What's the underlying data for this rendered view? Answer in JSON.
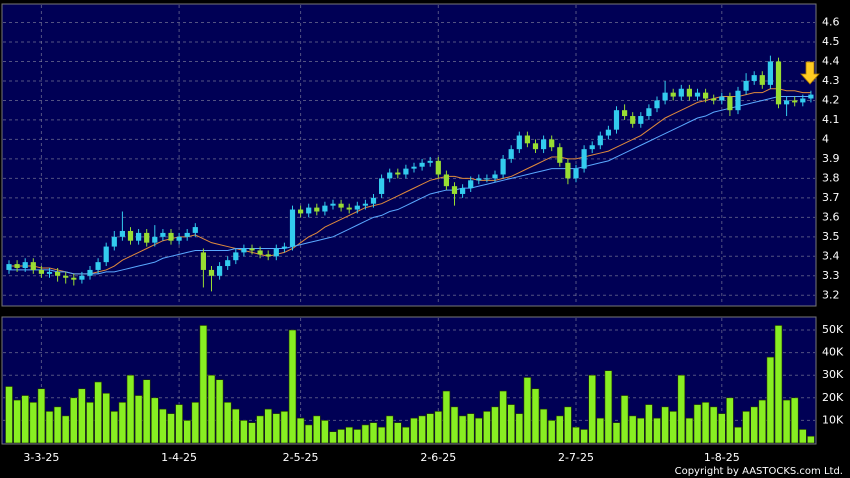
{
  "chart_data": [
    {
      "type": "candlestick",
      "up_color": "#33ccee",
      "down_color": "#99dd33",
      "grid": true,
      "ylim": [
        3.15,
        4.69
      ],
      "yticks": [
        3.2,
        3.3,
        3.4,
        3.5,
        3.6,
        3.7,
        3.8,
        3.9,
        4,
        4.1,
        4.2,
        4.3,
        4.4,
        4.5,
        4.6
      ],
      "open": [
        3.33,
        3.36,
        3.34,
        3.37,
        3.33,
        3.31,
        3.32,
        3.3,
        3.29,
        3.28,
        3.3,
        3.33,
        3.37,
        3.45,
        3.5,
        3.53,
        3.48,
        3.52,
        3.47,
        3.5,
        3.52,
        3.48,
        3.5,
        3.52,
        3.42,
        3.33,
        3.3,
        3.35,
        3.38,
        3.42,
        3.44,
        3.43,
        3.41,
        3.4,
        3.44,
        3.45,
        3.64,
        3.62,
        3.65,
        3.63,
        3.66,
        3.67,
        3.65,
        3.64,
        3.66,
        3.67,
        3.72,
        3.8,
        3.83,
        3.82,
        3.85,
        3.86,
        3.88,
        3.89,
        3.82,
        3.76,
        3.72,
        3.75,
        3.79,
        3.8,
        3.8,
        3.82,
        3.9,
        3.95,
        4.02,
        3.98,
        3.95,
        4.0,
        3.96,
        3.88,
        3.8,
        3.85,
        3.95,
        3.97,
        4.02,
        4.05,
        4.15,
        4.12,
        4.08,
        4.12,
        4.16,
        4.2,
        4.24,
        4.22,
        4.26,
        4.22,
        4.24,
        4.21,
        4.2,
        4.22,
        4.15,
        4.25,
        4.3,
        4.33,
        4.28,
        4.4,
        4.18,
        4.2,
        4.19,
        4.21
      ],
      "high": [
        3.38,
        3.38,
        3.39,
        3.39,
        3.35,
        3.34,
        3.34,
        3.32,
        3.31,
        3.32,
        3.35,
        3.39,
        3.47,
        3.53,
        3.63,
        3.55,
        3.54,
        3.54,
        3.56,
        3.54,
        3.54,
        3.52,
        3.54,
        3.57,
        3.44,
        3.35,
        3.37,
        3.4,
        3.44,
        3.46,
        3.46,
        3.45,
        3.43,
        3.46,
        3.47,
        3.66,
        3.66,
        3.67,
        3.67,
        3.68,
        3.69,
        3.69,
        3.67,
        3.68,
        3.69,
        3.72,
        3.82,
        3.85,
        3.85,
        3.87,
        3.88,
        3.9,
        3.91,
        3.91,
        3.84,
        3.78,
        3.77,
        3.81,
        3.82,
        3.82,
        3.84,
        3.92,
        3.97,
        4.04,
        4.04,
        4.0,
        4.02,
        4.02,
        3.98,
        3.9,
        3.87,
        3.97,
        3.99,
        4.04,
        4.07,
        4.17,
        4.18,
        4.14,
        4.14,
        4.18,
        4.22,
        4.3,
        4.26,
        4.28,
        4.28,
        4.26,
        4.26,
        4.23,
        4.24,
        4.24,
        4.27,
        4.34,
        4.35,
        4.35,
        4.43,
        4.42,
        4.22,
        4.22,
        4.23,
        4.25
      ],
      "low": [
        3.31,
        3.32,
        3.32,
        3.31,
        3.29,
        3.29,
        3.27,
        3.26,
        3.25,
        3.26,
        3.28,
        3.31,
        3.35,
        3.43,
        3.48,
        3.46,
        3.46,
        3.45,
        3.45,
        3.48,
        3.46,
        3.46,
        3.48,
        3.5,
        3.24,
        3.22,
        3.28,
        3.33,
        3.36,
        3.4,
        3.41,
        3.39,
        3.38,
        3.38,
        3.42,
        3.43,
        3.6,
        3.6,
        3.61,
        3.61,
        3.64,
        3.63,
        3.62,
        3.62,
        3.64,
        3.65,
        3.7,
        3.78,
        3.8,
        3.8,
        3.83,
        3.84,
        3.86,
        3.8,
        3.74,
        3.66,
        3.7,
        3.73,
        3.77,
        3.78,
        3.78,
        3.8,
        3.88,
        3.93,
        3.96,
        3.93,
        3.93,
        3.94,
        3.86,
        3.77,
        3.78,
        3.83,
        3.93,
        3.95,
        4.0,
        4.03,
        4.1,
        4.06,
        4.06,
        4.1,
        4.14,
        4.18,
        4.2,
        4.2,
        4.2,
        4.2,
        4.19,
        4.18,
        4.18,
        4.12,
        4.13,
        4.23,
        4.28,
        4.26,
        4.26,
        4.16,
        4.12,
        4.17,
        4.17,
        4.19
      ],
      "close": [
        3.36,
        3.34,
        3.37,
        3.33,
        3.31,
        3.32,
        3.3,
        3.29,
        3.28,
        3.3,
        3.33,
        3.37,
        3.45,
        3.5,
        3.53,
        3.48,
        3.52,
        3.47,
        3.5,
        3.52,
        3.48,
        3.5,
        3.52,
        3.55,
        3.33,
        3.3,
        3.35,
        3.38,
        3.42,
        3.44,
        3.43,
        3.41,
        3.4,
        3.44,
        3.45,
        3.64,
        3.62,
        3.65,
        3.63,
        3.66,
        3.67,
        3.65,
        3.64,
        3.66,
        3.67,
        3.7,
        3.8,
        3.83,
        3.82,
        3.85,
        3.86,
        3.88,
        3.89,
        3.82,
        3.76,
        3.72,
        3.75,
        3.79,
        3.8,
        3.8,
        3.82,
        3.9,
        3.95,
        4.02,
        3.98,
        3.95,
        4.0,
        3.96,
        3.88,
        3.8,
        3.85,
        3.95,
        3.97,
        4.02,
        4.05,
        4.15,
        4.12,
        4.08,
        4.12,
        4.16,
        4.2,
        4.24,
        4.22,
        4.26,
        4.22,
        4.24,
        4.21,
        4.2,
        4.22,
        4.15,
        4.25,
        4.3,
        4.33,
        4.28,
        4.4,
        4.18,
        4.2,
        4.19,
        4.21,
        4.23
      ],
      "lines": [
        {
          "color": "#e08a3c",
          "values": [
            3.35,
            3.35,
            3.35,
            3.35,
            3.34,
            3.34,
            3.33,
            3.32,
            3.31,
            3.31,
            3.31,
            3.32,
            3.33,
            3.35,
            3.38,
            3.4,
            3.42,
            3.44,
            3.46,
            3.48,
            3.49,
            3.5,
            3.5,
            3.51,
            3.49,
            3.47,
            3.46,
            3.45,
            3.44,
            3.43,
            3.42,
            3.41,
            3.4,
            3.41,
            3.42,
            3.44,
            3.47,
            3.5,
            3.52,
            3.55,
            3.57,
            3.59,
            3.61,
            3.63,
            3.65,
            3.66,
            3.67,
            3.69,
            3.71,
            3.73,
            3.75,
            3.77,
            3.79,
            3.8,
            3.81,
            3.81,
            3.8,
            3.8,
            3.79,
            3.79,
            3.79,
            3.8,
            3.81,
            3.83,
            3.85,
            3.87,
            3.89,
            3.91,
            3.91,
            3.9,
            3.9,
            3.91,
            3.92,
            3.93,
            3.94,
            3.96,
            3.98,
            4.0,
            4.02,
            4.05,
            4.08,
            4.11,
            4.13,
            4.15,
            4.17,
            4.19,
            4.2,
            4.21,
            4.22,
            4.22,
            4.22,
            4.23,
            4.24,
            4.24,
            4.26,
            4.26,
            4.25,
            4.25,
            4.24,
            4.24
          ]
        },
        {
          "color": "#5aa8ff",
          "values": [
            3.33,
            3.33,
            3.33,
            3.33,
            3.33,
            3.33,
            3.32,
            3.32,
            3.31,
            3.31,
            3.31,
            3.31,
            3.32,
            3.32,
            3.33,
            3.34,
            3.35,
            3.36,
            3.37,
            3.39,
            3.4,
            3.41,
            3.42,
            3.43,
            3.43,
            3.43,
            3.43,
            3.43,
            3.44,
            3.44,
            3.44,
            3.44,
            3.44,
            3.44,
            3.44,
            3.45,
            3.46,
            3.47,
            3.48,
            3.49,
            3.5,
            3.52,
            3.54,
            3.56,
            3.58,
            3.6,
            3.61,
            3.63,
            3.64,
            3.66,
            3.68,
            3.7,
            3.72,
            3.73,
            3.74,
            3.74,
            3.75,
            3.75,
            3.76,
            3.77,
            3.78,
            3.79,
            3.8,
            3.81,
            3.82,
            3.83,
            3.84,
            3.85,
            3.85,
            3.85,
            3.85,
            3.86,
            3.87,
            3.88,
            3.89,
            3.91,
            3.93,
            3.95,
            3.97,
            3.99,
            4.01,
            4.03,
            4.05,
            4.07,
            4.09,
            4.11,
            4.12,
            4.14,
            4.15,
            4.16,
            4.17,
            4.18,
            4.19,
            4.2,
            4.21,
            4.22,
            4.22,
            4.22,
            4.22,
            4.22
          ]
        }
      ]
    },
    {
      "type": "bar",
      "color": "#88ee22",
      "grid": true,
      "ylim": [
        0,
        55300
      ],
      "yticks": [
        {
          "value": 10000,
          "label": "10K"
        },
        {
          "value": 20000,
          "label": "20K"
        },
        {
          "value": 30000,
          "label": "30K"
        },
        {
          "value": 40000,
          "label": "40K"
        },
        {
          "value": 50000,
          "label": "50K"
        }
      ],
      "categories": [
        null,
        null,
        null,
        null,
        "3-3-25",
        null,
        null,
        null,
        null,
        null,
        null,
        null,
        null,
        null,
        null,
        null,
        null,
        null,
        null,
        null,
        null,
        "1-4-25",
        null,
        null,
        null,
        null,
        null,
        null,
        null,
        null,
        null,
        null,
        null,
        null,
        null,
        null,
        "2-5-25",
        null,
        null,
        null,
        null,
        null,
        null,
        null,
        null,
        null,
        null,
        null,
        null,
        null,
        null,
        null,
        null,
        "2-6-25",
        null,
        null,
        null,
        null,
        null,
        null,
        null,
        null,
        null,
        null,
        null,
        null,
        null,
        null,
        null,
        null,
        "2-7-25",
        null,
        null,
        null,
        null,
        null,
        null,
        null,
        null,
        null,
        null,
        null,
        null,
        null,
        null,
        null,
        null,
        null,
        "1-8-25",
        null,
        null,
        null,
        null,
        null,
        null,
        null,
        null,
        null,
        null,
        null
      ],
      "values": [
        25000,
        19000,
        21000,
        18000,
        24000,
        14000,
        16000,
        12000,
        20000,
        24000,
        18000,
        27000,
        22000,
        14000,
        18000,
        30000,
        21000,
        28000,
        20000,
        15000,
        13000,
        17000,
        10000,
        18000,
        52000,
        30000,
        28000,
        18000,
        15000,
        10000,
        9000,
        12000,
        15000,
        13000,
        14000,
        50000,
        11000,
        8000,
        12000,
        10000,
        5000,
        6000,
        7000,
        6000,
        8000,
        9000,
        7000,
        12000,
        9000,
        7000,
        11000,
        12000,
        13000,
        14000,
        23000,
        16000,
        12000,
        13000,
        11000,
        14000,
        16000,
        23000,
        17000,
        13000,
        29000,
        24000,
        15000,
        10000,
        12000,
        16000,
        7000,
        6000,
        30000,
        11000,
        32000,
        9000,
        21000,
        12000,
        11000,
        17000,
        11000,
        16000,
        14000,
        30000,
        11000,
        17000,
        18000,
        16000,
        13000,
        20000,
        7000,
        14000,
        16000,
        19000,
        38000,
        52000,
        19000,
        20000,
        6000,
        3000
      ],
      "copyright": "Copyright by AASTOCKS.com Ltd."
    }
  ]
}
